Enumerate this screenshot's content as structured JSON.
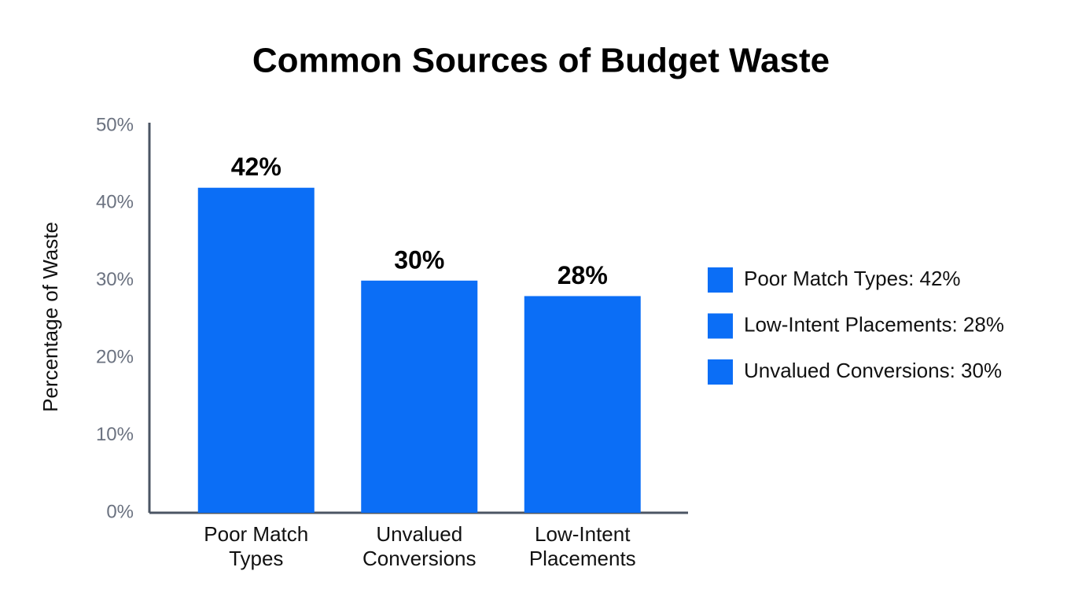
{
  "chart_data": {
    "type": "bar",
    "title": "Common Sources of Budget Waste",
    "y_label": "Percentage of Waste",
    "categories": [
      "Poor Match Types",
      "Unvalued Conversions",
      "Low-Intent Placements"
    ],
    "values": [
      42,
      30,
      28
    ],
    "value_labels": [
      "42%",
      "30%",
      "28%"
    ],
    "color": "#0b6ef6",
    "ylim": [
      0,
      50
    ],
    "yticks": [
      {
        "value": 0,
        "label": "0%"
      },
      {
        "value": 10,
        "label": "10%"
      },
      {
        "value": 20,
        "label": "20%"
      },
      {
        "value": 30,
        "label": "30%"
      },
      {
        "value": 40,
        "label": "40%"
      },
      {
        "value": 50,
        "label": "50%"
      }
    ],
    "grid": false,
    "legend_position": "right",
    "legend": [
      "Poor Match Types: 42%",
      "Low-Intent Placements: 28%",
      "Unvalued Conversions: 30%"
    ]
  }
}
